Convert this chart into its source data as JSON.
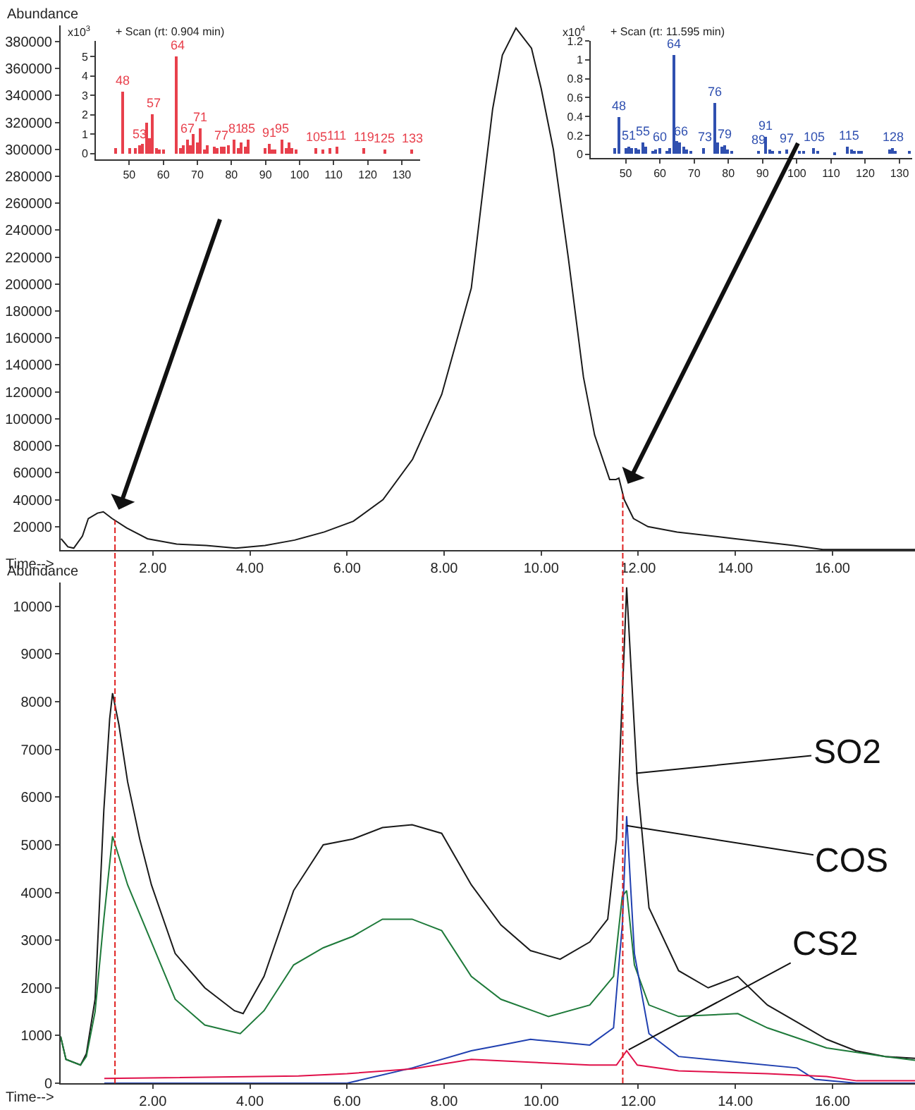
{
  "chart_data": [
    {
      "type": "line",
      "xlabel": "Time-->",
      "ylabel": "Abundance",
      "xlim": [
        0.1,
        17.7
      ],
      "ylim": [
        2600,
        392000
      ],
      "xticks": [
        {
          "value": 2,
          "label": "2.00"
        },
        {
          "value": 4,
          "label": "4.00"
        },
        {
          "value": 6,
          "label": "6.00"
        },
        {
          "value": 8,
          "label": "8.00"
        },
        {
          "value": 10,
          "label": "10.00"
        },
        {
          "value": 12,
          "label": "12.00"
        },
        {
          "value": 14,
          "label": "14.00"
        },
        {
          "value": 16,
          "label": "16.00"
        }
      ],
      "yticks": [
        20000,
        40000,
        60000,
        80000,
        100000,
        120000,
        140000,
        160000,
        180000,
        200000,
        220000,
        240000,
        260000,
        280000,
        300000,
        320000,
        340000,
        360000,
        380000
      ],
      "marker": "none",
      "line_style": "solid",
      "series": [
        {
          "color": "#1a1a1a",
          "x": [
            0.11,
            0.25,
            0.37,
            0.55,
            0.67,
            0.86,
            0.98,
            1.16,
            1.46,
            1.89,
            2.49,
            3.1,
            3.71,
            4.31,
            4.92,
            5.53,
            6.13,
            6.74,
            7.35,
            7.95,
            8.56,
            8.8,
            9.0,
            9.2,
            9.48,
            9.8,
            10.0,
            10.25,
            10.56,
            10.87,
            11.1,
            11.41,
            11.54,
            11.6,
            11.71,
            11.9,
            12.2,
            12.8,
            14.0,
            15.2,
            15.8,
            17.7
          ],
          "values": [
            11000,
            5000,
            4000,
            13000,
            26000,
            30000,
            31000,
            26000,
            19000,
            11000,
            7000,
            6000,
            4000,
            6000,
            10000,
            16000,
            24000,
            40000,
            70000,
            118000,
            197000,
            270000,
            330000,
            370000,
            390000,
            375000,
            345000,
            300000,
            219000,
            131000,
            88000,
            55000,
            55000,
            56000,
            40000,
            26000,
            20000,
            16000,
            11000,
            6000,
            3000,
            3000
          ]
        }
      ]
    },
    {
      "type": "bar",
      "title": "+ Scan (rt: 0.904 min)",
      "ylabel": "x10$^{3}$",
      "xlim": [
        40.2,
        135.4
      ],
      "ylim": [
        -0.3,
        5.8
      ],
      "xticks": [
        50,
        60,
        70,
        80,
        90,
        100,
        110,
        120,
        130
      ],
      "yticks": [
        0,
        1,
        2,
        3,
        4,
        5
      ],
      "annotations": [
        {
          "text": "48",
          "x": 48,
          "y": 3.2
        },
        {
          "text": "53",
          "x": 53,
          "y": 0.45
        },
        {
          "text": "57",
          "x": 57,
          "y": 2.0
        },
        {
          "text": "64",
          "x": 64,
          "y": 5.0
        },
        {
          "text": "67",
          "x": 67,
          "y": 0.7
        },
        {
          "text": "71",
          "x": 71,
          "y": 1.3
        },
        {
          "text": "77",
          "x": 77,
          "y": 0.35
        },
        {
          "text": "81",
          "x": 81,
          "y": 0.7
        },
        {
          "text": "85",
          "x": 85,
          "y": 0.7
        },
        {
          "text": "91",
          "x": 91,
          "y": 0.5
        },
        {
          "text": "95",
          "x": 95,
          "y": 0.7
        },
        {
          "text": "105",
          "x": 105,
          "y": 0.3
        },
        {
          "text": "111",
          "x": 111,
          "y": 0.35
        },
        {
          "text": "119",
          "x": 119,
          "y": 0.3
        },
        {
          "text": "125",
          "x": 125,
          "y": 0.2
        },
        {
          "text": "133",
          "x": 133,
          "y": 0.2
        }
      ],
      "series": [
        {
          "color": "#e8404c",
          "x": [
            46,
            48,
            50,
            52,
            53,
            54,
            55,
            56,
            57,
            58,
            59,
            60,
            64,
            65,
            66,
            67,
            68,
            69,
            70,
            71,
            72,
            73,
            75,
            76,
            77,
            78,
            79,
            81,
            82,
            83,
            84,
            85,
            90,
            91,
            92,
            93,
            95,
            96,
            97,
            98,
            99,
            105,
            107,
            109,
            111,
            119,
            125,
            133
          ],
          "values": [
            0.3,
            3.2,
            0.3,
            0.3,
            0.45,
            0.5,
            1.6,
            0.8,
            2.0,
            0.3,
            0.2,
            0.2,
            5.0,
            0.3,
            0.4,
            0.7,
            0.4,
            1.0,
            0.55,
            1.3,
            0.2,
            0.4,
            0.35,
            0.3,
            0.35,
            0.35,
            0.45,
            0.7,
            0.3,
            0.6,
            0.35,
            0.7,
            0.3,
            0.5,
            0.2,
            0.2,
            0.7,
            0.3,
            0.6,
            0.3,
            0.2,
            0.3,
            0.2,
            0.3,
            0.35,
            0.3,
            0.2,
            0.2
          ]
        }
      ]
    },
    {
      "type": "bar",
      "title": "+ Scan (rt: 11.595 min)",
      "ylabel": "x10$^{4}$",
      "xlim": [
        39.8,
        133.7
      ],
      "ylim": [
        -0.04,
        1.2
      ],
      "xticks": [
        50,
        60,
        70,
        80,
        90,
        100,
        110,
        120,
        130
      ],
      "yticks": [
        0,
        0.2,
        0.4,
        0.6,
        0.8,
        1,
        1.2
      ],
      "annotations": [
        {
          "text": "48",
          "x": 48,
          "y": 0.4
        },
        {
          "text": "51",
          "x": 51,
          "y": 0.08
        },
        {
          "text": "55",
          "x": 55,
          "y": 0.12
        },
        {
          "text": "60",
          "x": 60,
          "y": 0.07
        },
        {
          "text": "64",
          "x": 64,
          "y": 1.05
        },
        {
          "text": "66",
          "x": 66,
          "y": 0.12
        },
        {
          "text": "73",
          "x": 73,
          "y": 0.06
        },
        {
          "text": "76",
          "x": 76,
          "y": 0.55
        },
        {
          "text": "79",
          "x": 79,
          "y": 0.1
        },
        {
          "text": "89",
          "x": 89,
          "y": 0.04
        },
        {
          "text": "91",
          "x": 91,
          "y": 0.18
        },
        {
          "text": "97",
          "x": 97,
          "y": 0.05
        },
        {
          "text": "105",
          "x": 105,
          "y": 0.07
        },
        {
          "text": "115",
          "x": 115,
          "y": 0.08
        },
        {
          "text": "128",
          "x": 128,
          "y": 0.06
        }
      ],
      "series": [
        {
          "color": "#3050b0",
          "x": [
            47,
            48,
            50,
            51,
            52,
            53,
            54,
            55,
            56,
            58,
            59,
            60,
            62,
            63,
            64,
            65,
            66,
            67,
            68,
            69,
            73,
            76,
            77,
            78,
            79,
            80,
            81,
            89,
            91,
            92,
            93,
            95,
            97,
            101,
            102,
            105,
            106,
            111,
            115,
            116,
            117,
            118,
            119,
            127,
            128,
            129,
            133
          ],
          "values": [
            0.06,
            0.4,
            0.06,
            0.08,
            0.07,
            0.06,
            0.05,
            0.12,
            0.08,
            0.03,
            0.05,
            0.07,
            0.03,
            0.06,
            1.05,
            0.14,
            0.12,
            0.08,
            0.05,
            0.04,
            0.06,
            0.55,
            0.12,
            0.08,
            0.1,
            0.05,
            0.04,
            0.04,
            0.18,
            0.05,
            0.04,
            0.04,
            0.05,
            0.03,
            0.03,
            0.07,
            0.03,
            0.02,
            0.08,
            0.05,
            0.03,
            0.04,
            0.03,
            0.05,
            0.06,
            0.03,
            0.03
          ]
        }
      ]
    },
    {
      "type": "line",
      "xlabel": "Time-->",
      "ylabel": "Abundance",
      "xlim": [
        0.1,
        17.7
      ],
      "ylim": [
        0,
        10500
      ],
      "xticks": [
        {
          "value": 2,
          "label": "2.00"
        },
        {
          "value": 4,
          "label": "4.00"
        },
        {
          "value": 6,
          "label": "6.00"
        },
        {
          "value": 8,
          "label": "8.00"
        },
        {
          "value": 10,
          "label": "10.00"
        },
        {
          "value": 12,
          "label": "12.00"
        },
        {
          "value": 14,
          "label": "14.00"
        },
        {
          "value": 16,
          "label": "16.00"
        }
      ],
      "yticks": [
        0,
        1000,
        2000,
        3000,
        4000,
        5000,
        6000,
        7000,
        8000,
        9000,
        10000
      ],
      "marker": "none",
      "line_style": "solid",
      "ref_lines": [
        {
          "axis": "x",
          "value": 1.22,
          "color": "#e02020",
          "line_style": "dashed"
        },
        {
          "axis": "x",
          "value": 11.68,
          "color": "#e02020",
          "line_style": "dashed"
        }
      ],
      "annotations": [
        {
          "text": "SO2",
          "x": 11.95,
          "y": 6500
        },
        {
          "text": "COS",
          "x": 11.76,
          "y": 5400
        },
        {
          "text": "CS2",
          "x": 11.8,
          "y": 700
        }
      ],
      "series": [
        {
          "color": "#1a1a1a",
          "x": [
            0.1,
            0.21,
            0.51,
            0.63,
            0.81,
            0.99,
            1.11,
            1.17,
            1.3,
            1.48,
            1.73,
            1.97,
            2.46,
            3.07,
            3.68,
            3.86,
            4.29,
            4.9,
            5.51,
            6.12,
            6.73,
            7.34,
            7.95,
            8.56,
            9.17,
            9.78,
            10.39,
            11.0,
            11.37,
            11.55,
            11.67,
            11.76,
            11.85,
            11.98,
            12.22,
            12.83,
            13.44,
            14.05,
            14.66,
            15.27,
            15.88,
            16.48,
            17.09,
            17.7
          ],
          "values": [
            980,
            500,
            380,
            620,
            1760,
            5720,
            7640,
            8180,
            7520,
            6320,
            5120,
            4160,
            2720,
            2000,
            1520,
            1460,
            2240,
            4040,
            5000,
            5120,
            5360,
            5420,
            5240,
            4160,
            3320,
            2780,
            2600,
            2960,
            3440,
            5120,
            8120,
            10400,
            8720,
            6320,
            3680,
            2360,
            2000,
            2240,
            1640,
            1280,
            920,
            680,
            560,
            520
          ]
        },
        {
          "color": "#1e7a3a",
          "x": [
            0.1,
            0.21,
            0.51,
            0.63,
            0.81,
            0.99,
            1.17,
            1.48,
            1.97,
            2.46,
            3.07,
            3.8,
            4.29,
            4.9,
            5.51,
            6.12,
            6.73,
            7.34,
            7.95,
            8.56,
            9.17,
            10.15,
            11.0,
            11.49,
            11.67,
            11.76,
            11.92,
            12.22,
            12.83,
            14.05,
            14.66,
            15.88,
            17.09,
            17.7
          ],
          "values": [
            980,
            500,
            380,
            560,
            1500,
            3440,
            5180,
            4160,
            2960,
            1760,
            1220,
            1040,
            1520,
            2480,
            2840,
            3080,
            3440,
            3440,
            3200,
            2240,
            1760,
            1400,
            1640,
            2240,
            3920,
            4040,
            2480,
            1640,
            1400,
            1460,
            1160,
            740,
            560,
            480
          ]
        },
        {
          "color": "#2040b0",
          "x": [
            1.0,
            6.0,
            7.34,
            8.56,
            9.17,
            9.78,
            10.39,
            11.0,
            11.49,
            11.67,
            11.76,
            11.92,
            12.22,
            12.83,
            14.05,
            15.27,
            15.64,
            16.5,
            17.7
          ],
          "values": [
            0,
            0,
            320,
            680,
            800,
            920,
            860,
            800,
            1160,
            3320,
            5600,
            2720,
            1040,
            560,
            440,
            320,
            80,
            0,
            0
          ]
        },
        {
          "color": "#e0104a",
          "x": [
            1.0,
            5.0,
            6.0,
            7.34,
            8.56,
            9.78,
            11.0,
            11.55,
            11.76,
            11.98,
            12.83,
            14.66,
            15.88,
            16.5,
            17.7
          ],
          "values": [
            100,
            150,
            200,
            300,
            500,
            440,
            380,
            380,
            680,
            380,
            260,
            200,
            140,
            50,
            50
          ]
        }
      ]
    }
  ]
}
